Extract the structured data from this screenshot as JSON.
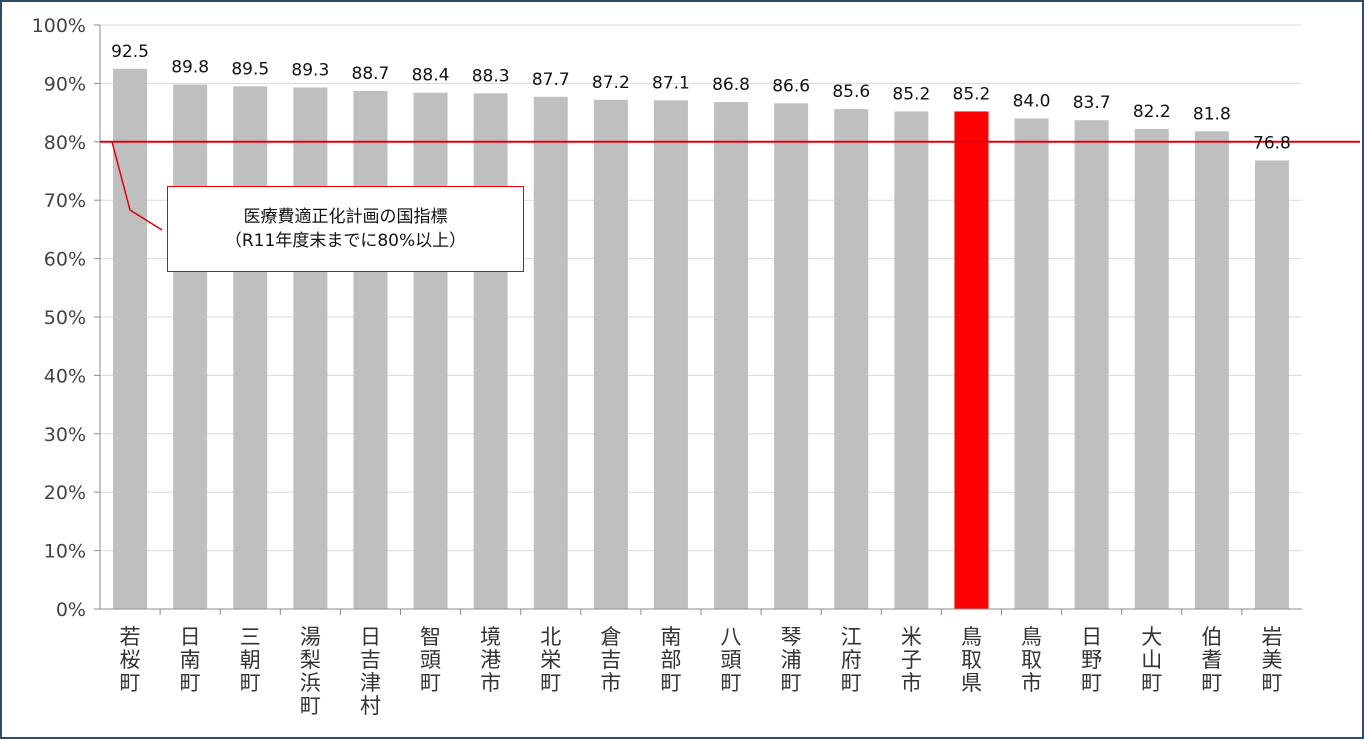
{
  "chart_data": {
    "type": "bar",
    "title": "",
    "xlabel": "",
    "ylabel": "",
    "ylim": [
      0,
      100
    ],
    "yticks": [
      0,
      10,
      20,
      30,
      40,
      50,
      60,
      70,
      80,
      90,
      100
    ],
    "ytick_labels": [
      "0%",
      "10%",
      "20%",
      "30%",
      "40%",
      "50%",
      "60%",
      "70%",
      "80%",
      "90%",
      "100%"
    ],
    "grid": true,
    "categories": [
      "若桜町",
      "日南町",
      "三朝町",
      "湯梨浜町",
      "日吉津村",
      "智頭町",
      "境港市",
      "北栄町",
      "倉吉市",
      "南部町",
      "八頭町",
      "琴浦町",
      "江府町",
      "米子市",
      "鳥取県",
      "鳥取市",
      "日野町",
      "大山町",
      "伯耆町",
      "岩美町"
    ],
    "values": [
      92.5,
      89.8,
      89.5,
      89.3,
      88.7,
      88.4,
      88.3,
      87.7,
      87.2,
      87.1,
      86.8,
      86.6,
      85.6,
      85.2,
      85.2,
      84.0,
      83.7,
      82.2,
      81.8,
      76.8
    ],
    "value_labels": [
      "92.5",
      "89.8",
      "89.5",
      "89.3",
      "88.7",
      "88.4",
      "88.3",
      "87.7",
      "87.2",
      "87.1",
      "86.8",
      "86.6",
      "85.6",
      "85.2",
      "85.2",
      "84.0",
      "83.7",
      "82.2",
      "81.8",
      "76.8"
    ],
    "highlight_category": "鳥取県",
    "reference_line": {
      "value": 80
    },
    "annotation": {
      "line1": "医療費適正化計画の国指標",
      "line2": "（R11年度末までに80%以上）"
    },
    "colors": {
      "bar": "#bfbfbf",
      "highlight": "#ff0000",
      "reference_line": "#e0000b",
      "grid": "#d9d9d9"
    }
  }
}
